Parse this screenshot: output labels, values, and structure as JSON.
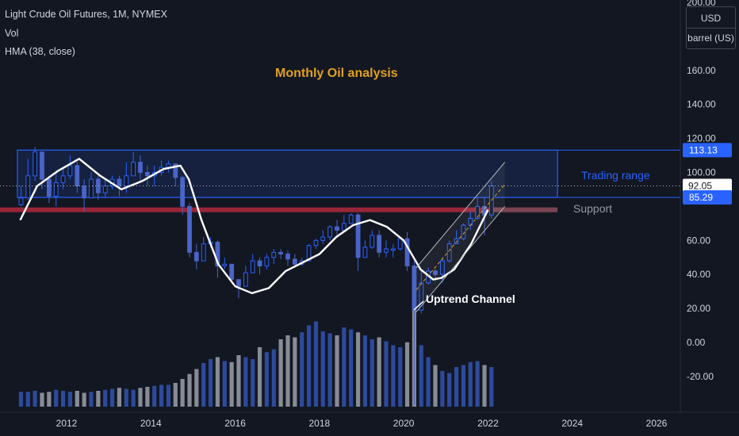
{
  "legend": {
    "symbol": "Light Crude Oil Futures, 1M, NYMEX",
    "volume": "Vol",
    "indicator": "HMA (38, close)"
  },
  "annotations": {
    "title": "Monthly Oil analysis",
    "trading_range": "Trading range",
    "support": "Support",
    "channel": "Uptrend Channel"
  },
  "price_scale": {
    "currency": "USD",
    "unit": "barrel (US)",
    "ticks": [
      "200.00",
      "160.00",
      "140.00",
      "120.00",
      "100.00",
      "60.00",
      "40.00",
      "20.00",
      "0.00",
      "-20.00"
    ],
    "badges": [
      {
        "label": "113.13",
        "value": 113.13,
        "style": "blue"
      },
      {
        "label": "92.05",
        "value": 92.05,
        "style": "white"
      },
      {
        "label": "85.29",
        "value": 85.29,
        "style": "blue"
      }
    ]
  },
  "time_scale": {
    "ticks": [
      "2012",
      "2014",
      "2016",
      "2018",
      "2020",
      "2022",
      "2024",
      "2026"
    ]
  },
  "colors": {
    "background": "#131722",
    "axis_text": "#d1d4dc",
    "candle": "#2962ff",
    "hma": "#ffffff",
    "range_box": "#2962ff",
    "support_line": "#b2283c",
    "title_text": "#e0a020",
    "volume_up": "#3150a8",
    "volume_down": "#9598a1"
  },
  "chart_data": {
    "type": "candlestick",
    "title": "Monthly Oil analysis",
    "series_name": "Light Crude Oil Futures, 1M, NYMEX",
    "y_unit": "USD / barrel (US)",
    "ylim": [
      -30,
      205
    ],
    "xlim": [
      2010.9,
      2026.9
    ],
    "grid": false,
    "price": {
      "x": [
        2010.917,
        2011.083,
        2011.25,
        2011.417,
        2011.583,
        2011.75,
        2011.917,
        2012.083,
        2012.25,
        2012.417,
        2012.583,
        2012.75,
        2012.917,
        2013.083,
        2013.25,
        2013.417,
        2013.583,
        2013.75,
        2013.917,
        2014.083,
        2014.25,
        2014.417,
        2014.583,
        2014.75,
        2014.917,
        2015.083,
        2015.25,
        2015.417,
        2015.583,
        2015.75,
        2015.917,
        2016.083,
        2016.25,
        2016.417,
        2016.583,
        2016.75,
        2016.917,
        2017.083,
        2017.25,
        2017.417,
        2017.583,
        2017.75,
        2017.917,
        2018.083,
        2018.25,
        2018.417,
        2018.583,
        2018.75,
        2018.917,
        2019.083,
        2019.25,
        2019.417,
        2019.583,
        2019.75,
        2019.917,
        2020.083,
        2020.25,
        2020.417,
        2020.583,
        2020.75,
        2020.917,
        2021.083,
        2021.25,
        2021.417,
        2021.583,
        2021.75,
        2021.917,
        2022.083
      ],
      "close": [
        85,
        98,
        112,
        96,
        86,
        94,
        98,
        104,
        92,
        85,
        96,
        88,
        92,
        96,
        92,
        98,
        106,
        100,
        98,
        100,
        103,
        105,
        97,
        80,
        53,
        48,
        58,
        59,
        45,
        46,
        37,
        33,
        41,
        48,
        45,
        50,
        53,
        52,
        49,
        46,
        48,
        57,
        60,
        62,
        68,
        66,
        70,
        75,
        50,
        56,
        63,
        53,
        55,
        55,
        61,
        45,
        19,
        35,
        42,
        40,
        48,
        58,
        61,
        69,
        73,
        80,
        75,
        92
      ],
      "range": [
        [
          80,
          92
        ],
        [
          84,
          108
        ],
        [
          95,
          115
        ],
        [
          90,
          112
        ],
        [
          82,
          98
        ],
        [
          80,
          100
        ],
        [
          90,
          103
        ],
        [
          96,
          110
        ],
        [
          88,
          106
        ],
        [
          77,
          96
        ],
        [
          85,
          100
        ],
        [
          84,
          98
        ],
        [
          85,
          97
        ],
        [
          90,
          98
        ],
        [
          86,
          98
        ],
        [
          88,
          106
        ],
        [
          98,
          112
        ],
        [
          95,
          110
        ],
        [
          92,
          104
        ],
        [
          92,
          104
        ],
        [
          98,
          107
        ],
        [
          100,
          107
        ],
        [
          92,
          105
        ],
        [
          75,
          98
        ],
        [
          50,
          82
        ],
        [
          43,
          58
        ],
        [
          50,
          62
        ],
        [
          56,
          62
        ],
        [
          38,
          60
        ],
        [
          43,
          50
        ],
        [
          35,
          46
        ],
        [
          26,
          37
        ],
        [
          34,
          45
        ],
        [
          45,
          52
        ],
        [
          40,
          50
        ],
        [
          43,
          52
        ],
        [
          46,
          55
        ],
        [
          49,
          55
        ],
        [
          45,
          54
        ],
        [
          44,
          52
        ],
        [
          45,
          50
        ],
        [
          50,
          58
        ],
        [
          55,
          61
        ],
        [
          58,
          66
        ],
        [
          60,
          69
        ],
        [
          63,
          72
        ],
        [
          65,
          75
        ],
        [
          70,
          76
        ],
        [
          42,
          76
        ],
        [
          50,
          60
        ],
        [
          55,
          66
        ],
        [
          50,
          66
        ],
        [
          50,
          60
        ],
        [
          50,
          58
        ],
        [
          54,
          62
        ],
        [
          42,
          65
        ],
        [
          -37,
          48
        ],
        [
          17,
          42
        ],
        [
          34,
          44
        ],
        [
          36,
          43
        ],
        [
          35,
          50
        ],
        [
          47,
          60
        ],
        [
          58,
          66
        ],
        [
          60,
          70
        ],
        [
          66,
          77
        ],
        [
          72,
          85
        ],
        [
          63,
          85
        ],
        [
          73,
          95
        ]
      ]
    },
    "hma_38": {
      "x": [
        2010.9,
        2011.3,
        2011.8,
        2012.3,
        2012.8,
        2013.3,
        2013.8,
        2014.3,
        2014.7,
        2014.9,
        2015.2,
        2015.6,
        2016.0,
        2016.4,
        2016.8,
        2017.2,
        2017.6,
        2018.0,
        2018.4,
        2018.8,
        2019.2,
        2019.6,
        2020.0,
        2020.4,
        2020.7,
        2020.9,
        2021.2,
        2021.6,
        2022.0
      ],
      "y": [
        72,
        92,
        101,
        108,
        98,
        90,
        95,
        102,
        104,
        96,
        72,
        46,
        33,
        29,
        32,
        42,
        47,
        52,
        62,
        69,
        72,
        68,
        60,
        43,
        37,
        38,
        43,
        58,
        78
      ]
    },
    "volume": {
      "note": "relative volume bars drawn in the lower pane (no scale printed)",
      "values": [
        0.15,
        0.15,
        0.16,
        0.14,
        0.15,
        0.17,
        0.16,
        0.15,
        0.16,
        0.14,
        0.15,
        0.16,
        0.17,
        0.18,
        0.19,
        0.18,
        0.17,
        0.19,
        0.2,
        0.21,
        0.22,
        0.22,
        0.24,
        0.28,
        0.33,
        0.38,
        0.44,
        0.48,
        0.5,
        0.46,
        0.45,
        0.52,
        0.5,
        0.48,
        0.6,
        0.55,
        0.58,
        0.68,
        0.72,
        0.7,
        0.75,
        0.82,
        0.86,
        0.76,
        0.74,
        0.72,
        0.8,
        0.78,
        0.75,
        0.72,
        0.68,
        0.7,
        0.66,
        0.62,
        0.6,
        0.65,
        1.0,
        0.62,
        0.5,
        0.42,
        0.36,
        0.34,
        0.4,
        0.42,
        0.45,
        0.46,
        0.42,
        0.4
      ]
    },
    "trading_range": {
      "top": 113.13,
      "bottom": 85.29,
      "x_start": 2010.9,
      "x_end": 2023.65
    },
    "support": {
      "level": 78,
      "x_start": 2010.9,
      "x_end": 2023.65
    },
    "last_price": 92.05,
    "channel": {
      "upper": [
        [
          2020.3,
          44
        ],
        [
          2022.4,
          106
        ]
      ],
      "lower": [
        [
          2020.3,
          18
        ],
        [
          2022.4,
          80
        ]
      ]
    }
  }
}
